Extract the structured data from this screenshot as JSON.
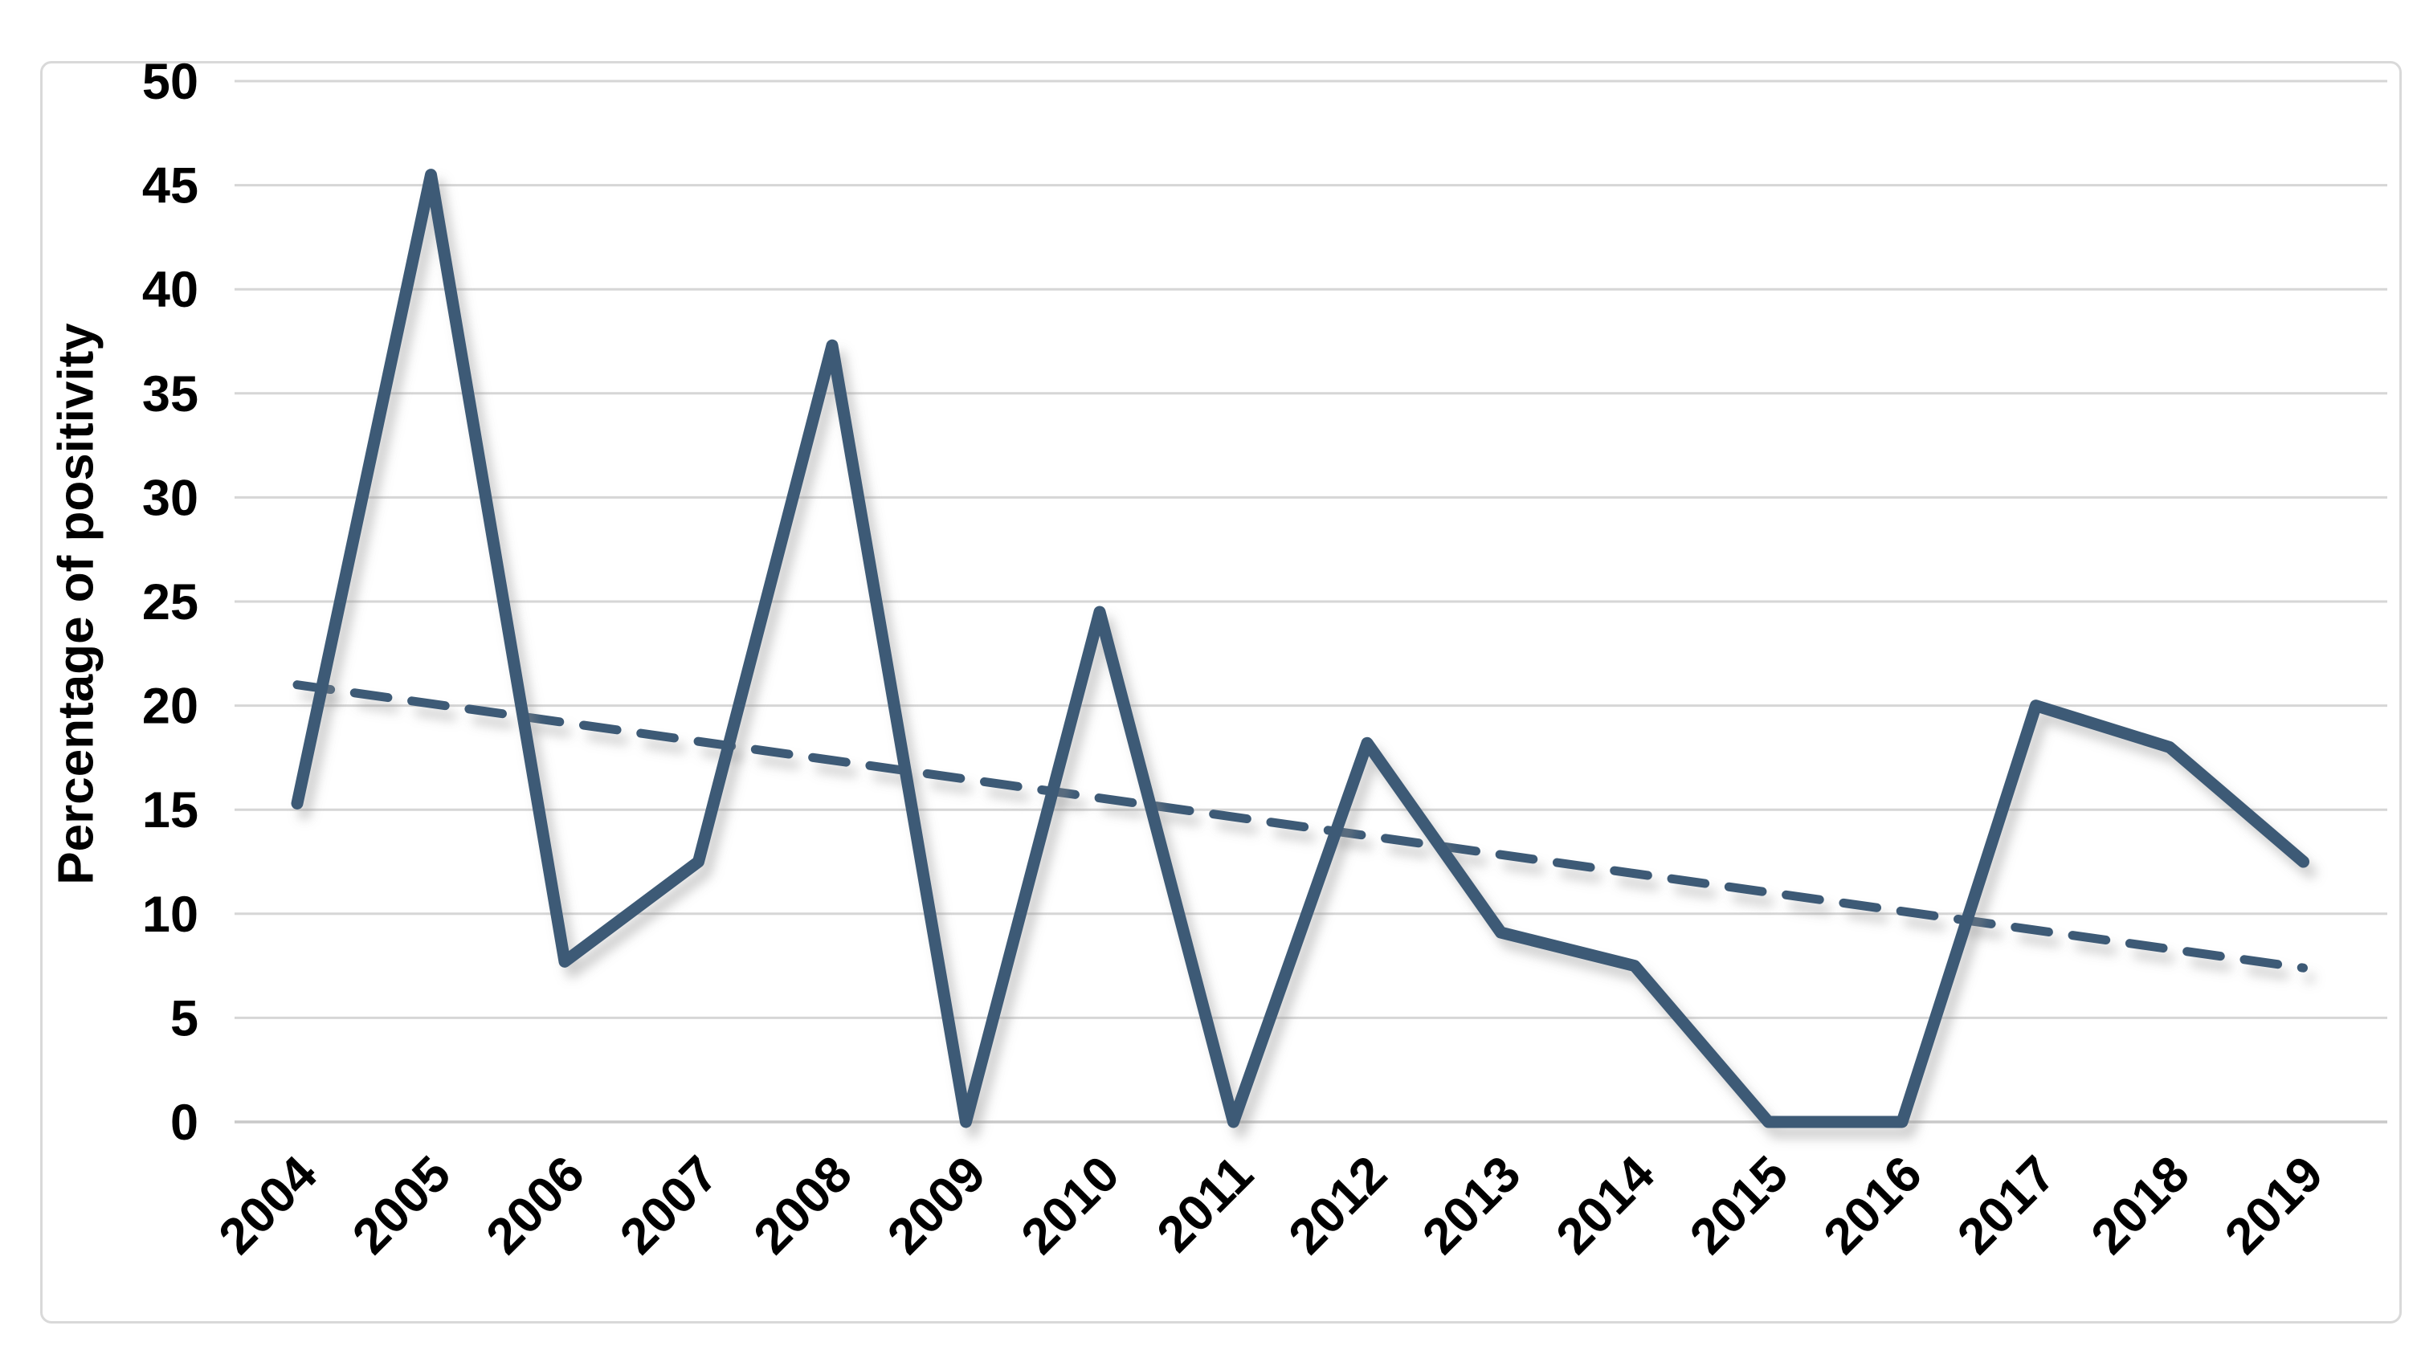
{
  "chart_data": {
    "type": "line",
    "title": "",
    "xlabel": "",
    "ylabel": "Percentage of positivity",
    "categories": [
      "2004",
      "2005",
      "2006",
      "2007",
      "2008",
      "2009",
      "2010",
      "2011",
      "2012",
      "2013",
      "2014",
      "2015",
      "2016",
      "2017",
      "2018",
      "2019"
    ],
    "series": [
      {
        "name": "Percentage of positivity",
        "style": "solid",
        "values": [
          15.3,
          45.5,
          7.7,
          12.5,
          37.3,
          0,
          24.5,
          0,
          18.2,
          9.1,
          7.5,
          0,
          0,
          20,
          18,
          12.5
        ]
      },
      {
        "name": "Linear trendline",
        "style": "dashed",
        "endpoint_values": [
          21.0,
          7.4
        ]
      }
    ],
    "y_ticks": [
      0,
      5,
      10,
      15,
      20,
      25,
      30,
      35,
      40,
      45,
      50
    ],
    "ylim": [
      0,
      50
    ],
    "grid": "horizontal",
    "legend_position": "none",
    "colors": {
      "line": "#3C5A76",
      "trendline": "#3C5A76",
      "gridline": "#D6D6D6",
      "axis_line": "#C9C9C9",
      "tick_label": "#000000",
      "border": "#D9D9D9",
      "background": "#FFFFFF"
    }
  }
}
